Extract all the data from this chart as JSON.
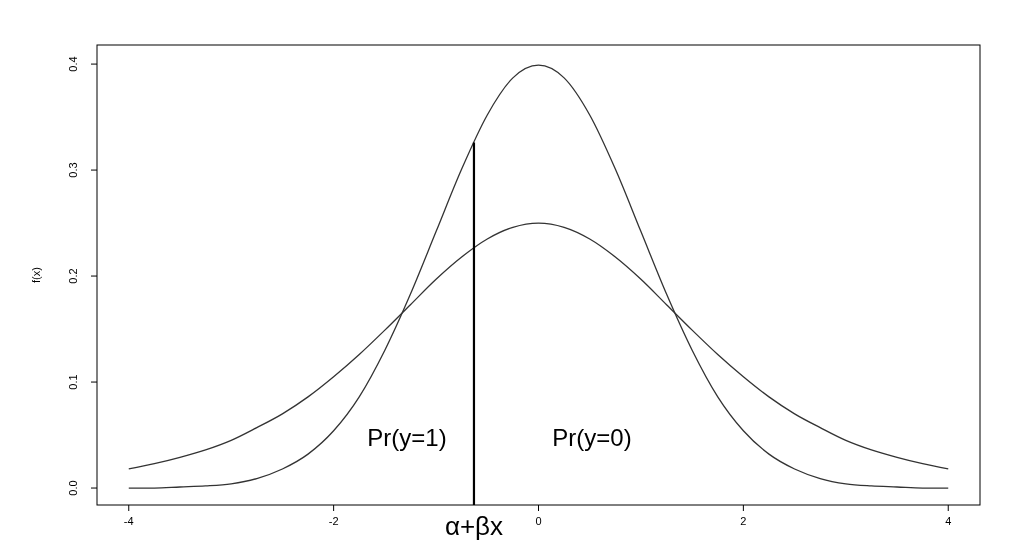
{
  "chart_data": {
    "type": "line",
    "ylabel": "f(x)",
    "xlim": [
      -4.31,
      4.31
    ],
    "ylim": [
      -0.016,
      0.418
    ],
    "xticks": [
      -4,
      -2,
      0,
      2,
      4
    ],
    "yticks": [
      {
        "value": 0,
        "label": "0.0"
      },
      {
        "value": 0.1,
        "label": "0.1"
      },
      {
        "value": 0.2,
        "label": "0.2"
      },
      {
        "value": 0.3,
        "label": "0.3"
      },
      {
        "value": 0.4,
        "label": "0.4"
      }
    ],
    "grid": false,
    "marker": "none",
    "line_style": "solid",
    "series": [
      {
        "color": "#333333",
        "x": [
          -4,
          -3.75,
          -3.5,
          -3.25,
          -3,
          -2.75,
          -2.5,
          -2.25,
          -2,
          -1.75,
          -1.5,
          -1.25,
          -1,
          -0.75,
          -0.5,
          -0.25,
          0,
          0.25,
          0.5,
          0.75,
          1,
          1.25,
          1.5,
          1.75,
          2,
          2.25,
          2.5,
          2.75,
          3,
          3.25,
          3.5,
          3.75,
          4
        ],
        "values": [
          0,
          0,
          0.001,
          0.002,
          0.004,
          0.009,
          0.018,
          0.032,
          0.054,
          0.086,
          0.13,
          0.183,
          0.242,
          0.301,
          0.352,
          0.387,
          0.399,
          0.387,
          0.352,
          0.301,
          0.242,
          0.183,
          0.13,
          0.086,
          0.054,
          0.032,
          0.018,
          0.009,
          0.004,
          0.002,
          0.001,
          0,
          0
        ]
      },
      {
        "color": "#333333",
        "x": [
          -4,
          -3.75,
          -3.5,
          -3.25,
          -3,
          -2.75,
          -2.5,
          -2.25,
          -2,
          -1.75,
          -1.5,
          -1.25,
          -1,
          -0.75,
          -0.5,
          -0.25,
          0,
          0.25,
          0.5,
          0.75,
          1,
          1.25,
          1.5,
          1.75,
          2,
          2.25,
          2.5,
          2.75,
          3,
          3.25,
          3.5,
          3.75,
          4
        ],
        "values": [
          0.018,
          0.023,
          0.029,
          0.036,
          0.045,
          0.057,
          0.07,
          0.086,
          0.105,
          0.126,
          0.149,
          0.173,
          0.197,
          0.218,
          0.235,
          0.246,
          0.25,
          0.246,
          0.235,
          0.218,
          0.197,
          0.173,
          0.149,
          0.126,
          0.105,
          0.086,
          0.07,
          0.057,
          0.045,
          0.036,
          0.029,
          0.023,
          0.018
        ]
      },
      {
        "color": "#000000",
        "x": [
          -0.63,
          -0.63
        ],
        "values": [
          -0.016,
          0.326
        ]
      }
    ],
    "annotations": [
      "Pr(y=1)",
      "Pr(y=0)",
      "α+βx"
    ]
  }
}
